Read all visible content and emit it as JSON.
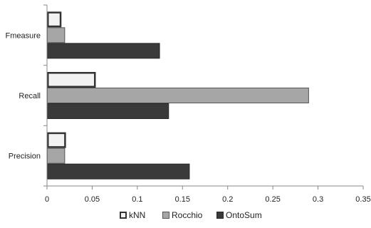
{
  "chart_data": {
    "type": "bar",
    "orientation": "horizontal",
    "categories": [
      "Fmeasure",
      "Recall",
      "Precision"
    ],
    "series": [
      {
        "name": "kNN",
        "values": [
          0.016,
          0.054,
          0.021
        ],
        "color": "#f2f2f2",
        "stroke": "#333333",
        "stroke_style": "thick"
      },
      {
        "name": "Rocchio",
        "values": [
          0.02,
          0.29,
          0.02
        ],
        "color": "#a6a6a6",
        "stroke": "#555555",
        "stroke_style": "thin"
      },
      {
        "name": "OntoSum",
        "values": [
          0.125,
          0.135,
          0.158
        ],
        "color": "#3a3a3a",
        "stroke": "#2a2a2a",
        "stroke_style": "thin"
      }
    ],
    "x_ticks": [
      "0",
      "0.05",
      "0.1",
      "0.15",
      "0.2",
      "0.25",
      "0.3",
      "0.35"
    ],
    "xlim": [
      0,
      0.35
    ],
    "grid": false,
    "legend_position": "bottom"
  }
}
